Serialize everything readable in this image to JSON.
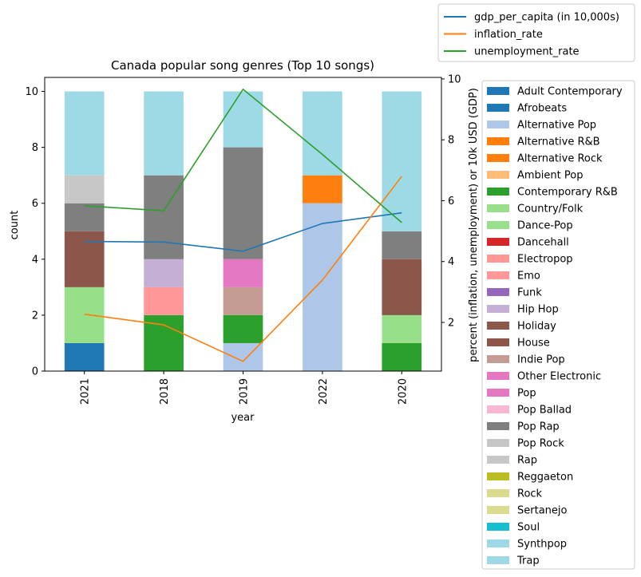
{
  "chart_data": {
    "type": "bar",
    "title": "Canada popular song genres (Top 10 songs)",
    "xlabel": "year",
    "ylabel": "count",
    "y2label": "percent (inflation, unemployment) or 10k USD (GDP)",
    "categories": [
      "2021",
      "2018",
      "2019",
      "2022",
      "2020"
    ],
    "ylim": [
      0,
      10.5
    ],
    "yticks": [
      0,
      2,
      4,
      6,
      8,
      10
    ],
    "y2lim": [
      0.4,
      10.05
    ],
    "y2ticks": [
      2,
      4,
      6,
      8,
      10
    ],
    "stacked": true,
    "legend_position": "right",
    "line_legend_position": "top-right",
    "series": [
      {
        "name": "Adult Contemporary",
        "color": "#1f77b4",
        "values": [
          0,
          0,
          0,
          0,
          0
        ]
      },
      {
        "name": "Afrobeats",
        "color": "#1f77b4",
        "values": [
          1,
          0,
          0,
          0,
          0
        ]
      },
      {
        "name": "Alternative Pop",
        "color": "#aec7e8",
        "values": [
          0,
          0,
          1,
          6,
          0
        ]
      },
      {
        "name": "Alternative R&B",
        "color": "#ff7f0e",
        "values": [
          0,
          0,
          0,
          1,
          0
        ]
      },
      {
        "name": "Alternative Rock",
        "color": "#ff7f0e",
        "values": [
          0,
          0,
          0,
          0,
          0
        ]
      },
      {
        "name": "Ambient Pop",
        "color": "#ffbb78",
        "values": [
          0,
          0,
          0,
          0,
          0
        ]
      },
      {
        "name": "Contemporary R&B",
        "color": "#2ca02c",
        "values": [
          0,
          2,
          1,
          0,
          1
        ]
      },
      {
        "name": "Country/Folk",
        "color": "#98df8a",
        "values": [
          0,
          0,
          0,
          0,
          0
        ]
      },
      {
        "name": "Dance-Pop",
        "color": "#98df8a",
        "values": [
          2,
          0,
          0,
          0,
          1
        ]
      },
      {
        "name": "Dancehall",
        "color": "#d62728",
        "values": [
          0,
          0,
          0,
          0,
          0
        ]
      },
      {
        "name": "Electropop",
        "color": "#ff9896",
        "values": [
          0,
          1,
          0,
          0,
          0
        ]
      },
      {
        "name": "Emo",
        "color": "#ff9896",
        "values": [
          0,
          0,
          0,
          0,
          0
        ]
      },
      {
        "name": "Funk",
        "color": "#9467bd",
        "values": [
          0,
          0,
          0,
          0,
          0
        ]
      },
      {
        "name": "Hip Hop",
        "color": "#c5b0d5",
        "values": [
          0,
          1,
          0,
          0,
          0
        ]
      },
      {
        "name": "Holiday",
        "color": "#8c564b",
        "values": [
          0,
          0,
          0,
          0,
          0
        ]
      },
      {
        "name": "House",
        "color": "#8c564b",
        "values": [
          2,
          0,
          0,
          0,
          2
        ]
      },
      {
        "name": "Indie Pop",
        "color": "#c49c94",
        "values": [
          0,
          0,
          1,
          0,
          0
        ]
      },
      {
        "name": "Other Electronic",
        "color": "#e377c2",
        "values": [
          0,
          0,
          1,
          0,
          0
        ]
      },
      {
        "name": "Pop",
        "color": "#e377c2",
        "values": [
          0,
          0,
          0,
          0,
          0
        ]
      },
      {
        "name": "Pop Ballad",
        "color": "#f7b6d2",
        "values": [
          0,
          0,
          0,
          0,
          0
        ]
      },
      {
        "name": "Pop Rap",
        "color": "#7f7f7f",
        "values": [
          1,
          3,
          4,
          0,
          1
        ]
      },
      {
        "name": "Pop Rock",
        "color": "#c7c7c7",
        "values": [
          0,
          0,
          0,
          0,
          0
        ]
      },
      {
        "name": "Rap",
        "color": "#c7c7c7",
        "values": [
          1,
          0,
          0,
          0,
          0
        ]
      },
      {
        "name": "Reggaeton",
        "color": "#bcbd22",
        "values": [
          0,
          0,
          0,
          0,
          0
        ]
      },
      {
        "name": "Rock",
        "color": "#dbdb8d",
        "values": [
          0,
          0,
          0,
          0,
          0
        ]
      },
      {
        "name": "Sertanejo",
        "color": "#dbdb8d",
        "values": [
          0,
          0,
          0,
          0,
          0
        ]
      },
      {
        "name": "Soul",
        "color": "#17becf",
        "values": [
          0,
          0,
          0,
          0,
          0
        ]
      },
      {
        "name": "Synthpop",
        "color": "#9edae5",
        "values": [
          0,
          0,
          0,
          0,
          0
        ]
      },
      {
        "name": "Trap",
        "color": "#9edae5",
        "values": [
          3,
          3,
          2,
          3,
          5
        ]
      }
    ],
    "lines": [
      {
        "name": "gdp_per_capita (in 10,000s)",
        "color": "#1f77b4",
        "values": [
          4.66,
          4.64,
          4.34,
          5.25,
          5.6
        ]
      },
      {
        "name": "inflation_rate",
        "color": "#ff7f0e",
        "values": [
          2.27,
          1.92,
          0.72,
          3.39,
          6.8
        ]
      },
      {
        "name": "unemployment_rate",
        "color": "#2ca02c",
        "values": [
          5.83,
          5.67,
          9.66,
          7.52,
          5.28
        ]
      }
    ]
  }
}
